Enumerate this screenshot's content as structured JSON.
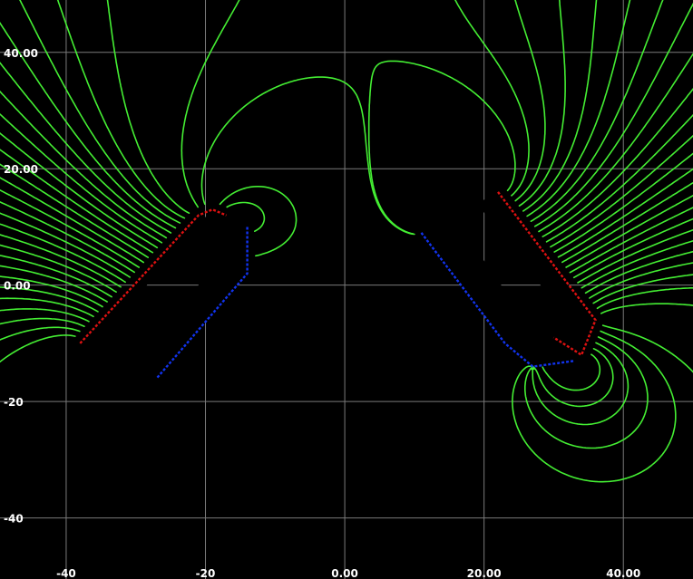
{
  "chart_data": {
    "type": "diagram",
    "x_ticks": [
      {
        "value": -40,
        "label": "-40"
      },
      {
        "value": -20,
        "label": "-20"
      },
      {
        "value": 0,
        "label": "0.00"
      },
      {
        "value": 20,
        "label": "20.00"
      },
      {
        "value": 40,
        "label": "40.00"
      }
    ],
    "y_ticks": [
      {
        "value": 40,
        "label": "40.00"
      },
      {
        "value": 20,
        "label": "20.00"
      },
      {
        "value": 0,
        "label": "0.00"
      },
      {
        "value": -20,
        "label": "-20"
      },
      {
        "value": -40,
        "label": "-40"
      }
    ],
    "xlim": [
      -49.5,
      50
    ],
    "ylim": [
      -50.5,
      49
    ],
    "grid": true,
    "colors": {
      "background": "#000000",
      "grid": "#7a7a7a",
      "field_lines": "#44ee33",
      "north_pole": "#dd1111",
      "south_pole": "#1133ee",
      "tick_labels": "#ffffff"
    },
    "magnets": [
      {
        "name": "left-u-magnet",
        "outline": [
          [
            -38,
            -10
          ],
          [
            -21,
            12
          ],
          [
            -14,
            10
          ],
          [
            -14,
            2
          ],
          [
            -27,
            -16
          ],
          [
            -31,
            -15
          ],
          [
            -21,
            0
          ],
          [
            -21,
            8
          ],
          [
            -24,
            8
          ],
          [
            -35,
            -12
          ]
        ],
        "north_edge": [
          [
            -38,
            -10
          ],
          [
            -21,
            12
          ],
          [
            -19,
            13
          ],
          [
            -17,
            12
          ]
        ],
        "south_edge": [
          [
            -14,
            10
          ],
          [
            -14,
            2
          ],
          [
            -27,
            -16
          ]
        ]
      },
      {
        "name": "right-u-magnet",
        "outline": [
          [
            22,
            16
          ],
          [
            36,
            -6
          ],
          [
            33,
            -13
          ],
          [
            25,
            -13
          ],
          [
            11,
            9
          ],
          [
            16,
            11
          ],
          [
            26,
            -6
          ],
          [
            30,
            -8
          ],
          [
            32,
            -6
          ],
          [
            19,
            14
          ]
        ],
        "north_edge": [
          [
            22,
            16
          ],
          [
            36,
            -6
          ],
          [
            34,
            -12
          ],
          [
            30,
            -9
          ]
        ],
        "south_edge": [
          [
            11,
            9
          ],
          [
            23,
            -10
          ],
          [
            27,
            -14
          ],
          [
            33,
            -13
          ]
        ]
      }
    ]
  }
}
